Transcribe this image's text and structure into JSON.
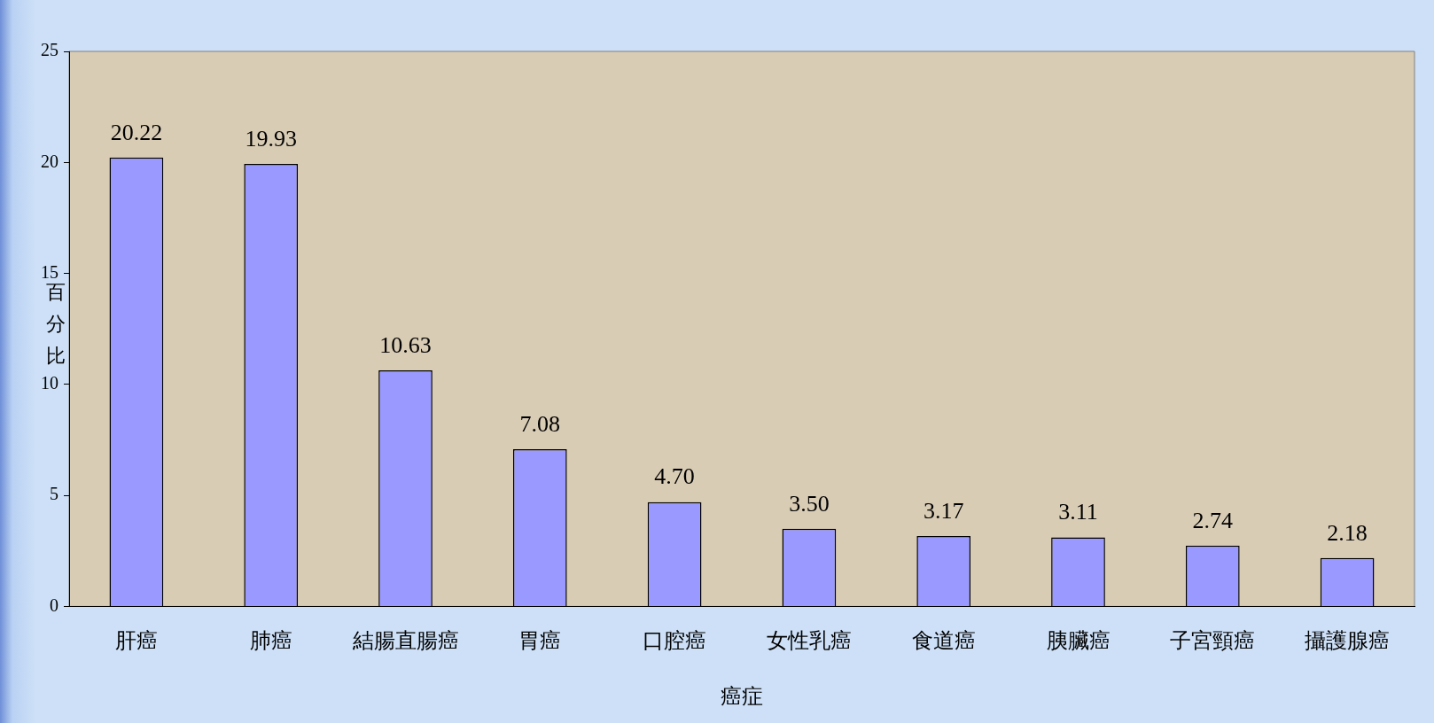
{
  "chart_data": {
    "type": "bar",
    "xlabel": "癌症",
    "ylabel": "百分比",
    "categories": [
      "肝癌",
      "肺癌",
      "結腸直腸癌",
      "胃癌",
      "口腔癌",
      "女性乳癌",
      "食道癌",
      "胰臟癌",
      "子宮頸癌",
      "攝護腺癌"
    ],
    "values": [
      20.22,
      19.93,
      10.63,
      7.08,
      4.7,
      3.5,
      3.17,
      3.11,
      2.74,
      2.18
    ],
    "value_labels": [
      "20.22",
      "19.93",
      "10.63",
      "7.08",
      "4.70",
      "3.50",
      "3.17",
      "3.11",
      "2.74",
      "2.18"
    ],
    "color": "#9999ff",
    "ylim": [
      0,
      25
    ],
    "yticks": [
      0,
      5,
      10,
      15,
      20,
      25
    ],
    "grid": false,
    "legend": false
  }
}
